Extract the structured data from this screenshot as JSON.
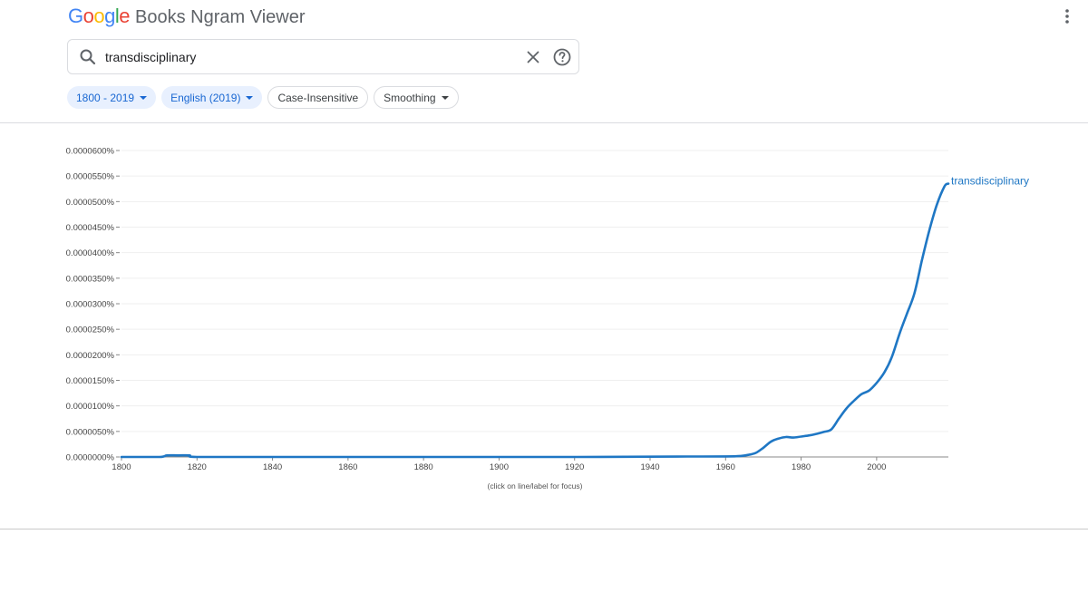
{
  "header": {
    "logo_word": "Google",
    "logo_letters": [
      {
        "ch": "G",
        "color": "#4285F4"
      },
      {
        "ch": "o",
        "color": "#EA4335"
      },
      {
        "ch": "o",
        "color": "#FBBC05"
      },
      {
        "ch": "g",
        "color": "#4285F4"
      },
      {
        "ch": "l",
        "color": "#34A853"
      },
      {
        "ch": "e",
        "color": "#EA4335"
      }
    ],
    "product": "Books Ngram Viewer",
    "more_icon": "more-vert-icon"
  },
  "search": {
    "value": "transdisciplinary",
    "search_icon": "search-icon",
    "clear_icon": "close-icon",
    "help_icon": "help-circle-icon"
  },
  "filters": {
    "year_range": "1800 - 2019",
    "corpus": "English (2019)",
    "case": "Case-Insensitive",
    "smoothing": "Smoothing"
  },
  "chart_data": {
    "type": "line",
    "x_range": [
      1800,
      2019
    ],
    "y_range": [
      0,
      6e-05
    ],
    "x_ticks": [
      "1800",
      "1820",
      "1840",
      "1860",
      "1880",
      "1900",
      "1920",
      "1940",
      "1960",
      "1980",
      "2000"
    ],
    "y_ticks": [
      "0.0000000%",
      "0.0000050%",
      "0.0000100%",
      "0.0000150%",
      "0.0000200%",
      "0.0000250%",
      "0.0000300%",
      "0.0000350%",
      "0.0000400%",
      "0.0000450%",
      "0.0000500%",
      "0.0000550%",
      "0.0000600%"
    ],
    "grid": true,
    "note": "(click on line/label for focus)",
    "series": [
      {
        "name": "transdisciplinary",
        "color": "#1f77c4",
        "points": [
          [
            1800,
            0
          ],
          [
            1810,
            0
          ],
          [
            1812,
            3e-07
          ],
          [
            1815,
            3e-07
          ],
          [
            1818,
            3e-07
          ],
          [
            1820,
            0
          ],
          [
            1840,
            0
          ],
          [
            1860,
            0
          ],
          [
            1880,
            0
          ],
          [
            1900,
            0
          ],
          [
            1920,
            0
          ],
          [
            1940,
            5e-08
          ],
          [
            1950,
            8e-08
          ],
          [
            1960,
            1e-07
          ],
          [
            1964,
            2e-07
          ],
          [
            1966,
            4e-07
          ],
          [
            1968,
            8e-07
          ],
          [
            1970,
            1.8e-06
          ],
          [
            1972,
            3e-06
          ],
          [
            1974,
            3.6e-06
          ],
          [
            1976,
            3.9e-06
          ],
          [
            1978,
            3.8e-06
          ],
          [
            1980,
            4e-06
          ],
          [
            1982,
            4.2e-06
          ],
          [
            1984,
            4.5e-06
          ],
          [
            1986,
            4.9e-06
          ],
          [
            1988,
            5.4e-06
          ],
          [
            1990,
            7.5e-06
          ],
          [
            1992,
            9.5e-06
          ],
          [
            1994,
            1.1e-05
          ],
          [
            1996,
            1.23e-05
          ],
          [
            1998,
            1.3e-05
          ],
          [
            2000,
            1.45e-05
          ],
          [
            2002,
            1.65e-05
          ],
          [
            2004,
            1.95e-05
          ],
          [
            2006,
            2.4e-05
          ],
          [
            2008,
            2.8e-05
          ],
          [
            2010,
            3.2e-05
          ],
          [
            2012,
            3.85e-05
          ],
          [
            2014,
            4.45e-05
          ],
          [
            2016,
            4.95e-05
          ],
          [
            2018,
            5.3e-05
          ],
          [
            2019,
            5.35e-05
          ]
        ]
      }
    ]
  }
}
